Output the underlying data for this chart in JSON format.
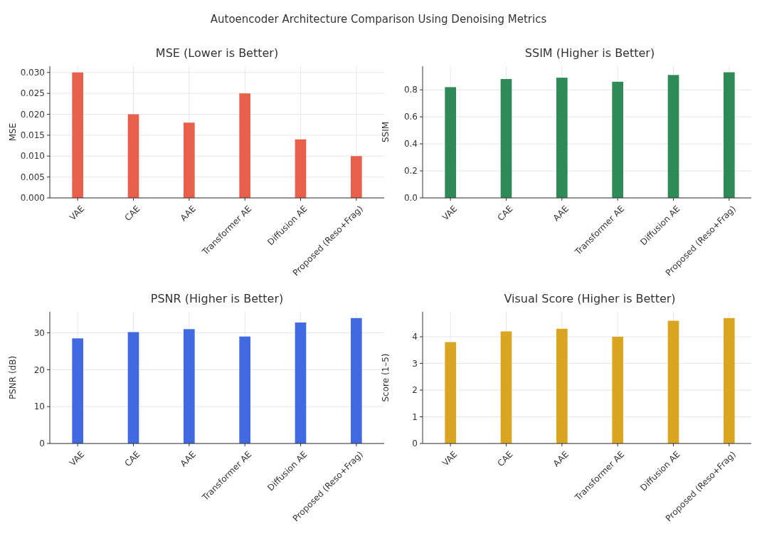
{
  "chart_data": [
    {
      "type": "bar",
      "title": "MSE (Lower is Better)",
      "ylabel": "MSE",
      "annotations": [
        "Autoencoder Architecture Comparison Using Denoising Metrics"
      ],
      "categories": [
        "VAE",
        "CAE",
        "AAE",
        "Transformer AE",
        "Diffusion AE",
        "Proposed (Reso+Frag)"
      ],
      "values": [
        0.03,
        0.02,
        0.018,
        0.025,
        0.014,
        0.01
      ],
      "color": "#e8604c",
      "ylim": [
        0,
        0.0315
      ],
      "yticks": [
        {
          "value": 0,
          "label": "0.000"
        },
        {
          "value": 0.005,
          "label": "0.005"
        },
        {
          "value": 0.01,
          "label": "0.010"
        },
        {
          "value": 0.015,
          "label": "0.015"
        },
        {
          "value": 0.02,
          "label": "0.020"
        },
        {
          "value": 0.025,
          "label": "0.025"
        },
        {
          "value": 0.03,
          "label": "0.030"
        }
      ],
      "grid": true
    },
    {
      "type": "bar",
      "title": "SSIM (Higher is Better)",
      "ylabel": "SSIM",
      "categories": [
        "VAE",
        "CAE",
        "AAE",
        "Transformer AE",
        "Diffusion AE",
        "Proposed (Reso+Frag)"
      ],
      "values": [
        0.82,
        0.88,
        0.89,
        0.86,
        0.91,
        0.93
      ],
      "color": "#2e8b57",
      "ylim": [
        0,
        0.975
      ],
      "yticks": [
        {
          "value": 0,
          "label": "0.0"
        },
        {
          "value": 0.2,
          "label": "0.2"
        },
        {
          "value": 0.4,
          "label": "0.4"
        },
        {
          "value": 0.6,
          "label": "0.6"
        },
        {
          "value": 0.8,
          "label": "0.8"
        }
      ],
      "grid": true
    },
    {
      "type": "bar",
      "title": "PSNR (Higher is Better)",
      "ylabel": "PSNR (dB)",
      "categories": [
        "VAE",
        "CAE",
        "AAE",
        "Transformer AE",
        "Diffusion AE",
        "Proposed (Reso+Frag)"
      ],
      "values": [
        28.5,
        30.2,
        31,
        29,
        32.8,
        34
      ],
      "color": "#4169e1",
      "ylim": [
        0,
        35.7
      ],
      "yticks": [
        0,
        10,
        20,
        30
      ],
      "grid": true
    },
    {
      "type": "bar",
      "title": "Visual Score (Higher is Better)",
      "ylabel": "Score (1–5)",
      "categories": [
        "VAE",
        "CAE",
        "AAE",
        "Transformer AE",
        "Diffusion AE",
        "Proposed (Reso+Frag)"
      ],
      "values": [
        3.8,
        4.2,
        4.3,
        4.0,
        4.6,
        4.7
      ],
      "color": "#daa520",
      "ylim": [
        0,
        4.935
      ],
      "yticks": [
        0,
        1,
        2,
        3,
        4
      ],
      "grid": true
    }
  ]
}
